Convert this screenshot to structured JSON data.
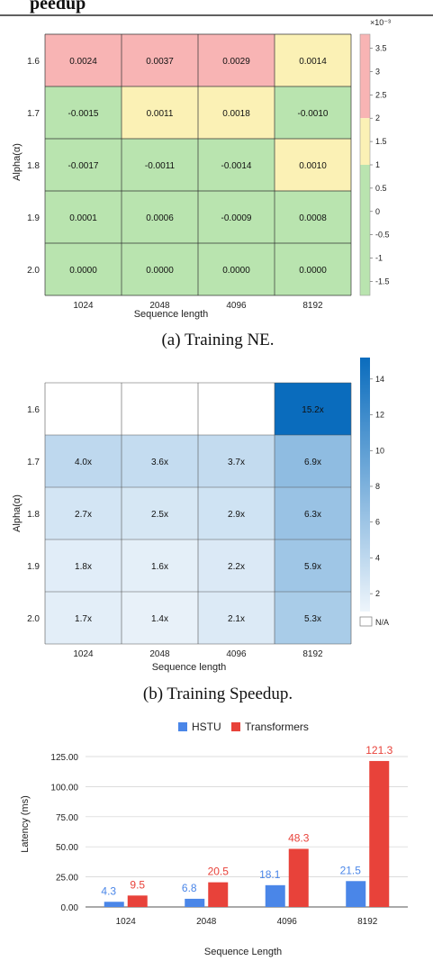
{
  "header": {
    "partial_title": "peedup"
  },
  "chart_data": [
    {
      "type": "heatmap",
      "caption": "(a) Training NE.",
      "xlabel": "Sequence length",
      "ylabel": "Alpha(α)",
      "x_categories": [
        "1024",
        "2048",
        "4096",
        "8192"
      ],
      "y_categories": [
        "1.6",
        "1.7",
        "1.8",
        "1.9",
        "2.0"
      ],
      "values": [
        [
          0.0024,
          0.0037,
          0.0029,
          0.0014
        ],
        [
          -0.0015,
          0.0011,
          0.0018,
          -0.001
        ],
        [
          -0.0017,
          -0.0011,
          -0.0014,
          0.001
        ],
        [
          0.0001,
          0.0006,
          -0.0009,
          0.0008
        ],
        [
          0.0,
          0.0,
          0.0,
          0.0
        ]
      ],
      "cell_labels": [
        [
          "0.0024",
          "0.0037",
          "0.0029",
          "0.0014"
        ],
        [
          "-0.0015",
          "0.0011",
          "0.0018",
          "-0.0010"
        ],
        [
          "-0.0017",
          "-0.0011",
          "-0.0014",
          "0.0010"
        ],
        [
          "0.0001",
          "0.0006",
          "-0.0009",
          "0.0008"
        ],
        [
          "0.0000",
          "0.0000",
          "0.0000",
          "0.0000"
        ]
      ],
      "colorbar": {
        "exponent_label": "×10⁻³",
        "range": [
          -1.8,
          3.8
        ],
        "ticks": [
          3.5,
          3,
          2.5,
          2,
          1.5,
          1,
          0.5,
          0,
          -0.5,
          -1,
          -1.5
        ],
        "tick_labels": [
          "3.5",
          "3",
          "2.5",
          "2",
          "1.5",
          "1",
          "0.5",
          "0",
          "-0.5",
          "-1",
          "-1.5"
        ],
        "bands": [
          {
            "from": 2,
            "to": 3.8,
            "color": "#f8b4b4"
          },
          {
            "from": 1,
            "to": 2,
            "color": "#fbf1b5"
          },
          {
            "from": -1.8,
            "to": 1,
            "color": "#b9e4af"
          }
        ]
      }
    },
    {
      "type": "heatmap",
      "caption": "(b) Training Speedup.",
      "xlabel": "Sequence length",
      "ylabel": "Alpha(α)",
      "x_categories": [
        "1024",
        "2048",
        "4096",
        "8192"
      ],
      "y_categories": [
        "1.6",
        "1.7",
        "1.8",
        "1.9",
        "2.0"
      ],
      "values": [
        [
          null,
          null,
          null,
          15.2
        ],
        [
          4.0,
          3.6,
          3.7,
          6.9
        ],
        [
          2.7,
          2.5,
          2.9,
          6.3
        ],
        [
          1.8,
          1.6,
          2.2,
          5.9
        ],
        [
          1.7,
          1.4,
          2.1,
          5.3
        ]
      ],
      "cell_labels": [
        [
          "",
          "",
          "",
          "15.2x"
        ],
        [
          "4.0x",
          "3.6x",
          "3.7x",
          "6.9x"
        ],
        [
          "2.7x",
          "2.5x",
          "2.9x",
          "6.3x"
        ],
        [
          "1.8x",
          "1.6x",
          "2.2x",
          "5.9x"
        ],
        [
          "1.7x",
          "1.4x",
          "2.1x",
          "5.3x"
        ]
      ],
      "colorbar": {
        "range": [
          1,
          15.2
        ],
        "ticks": [
          14,
          12,
          10,
          8,
          6,
          4,
          2
        ],
        "tick_labels": [
          "14",
          "12",
          "10",
          "8",
          "6",
          "4",
          "2"
        ],
        "low_color": "#eef5fb",
        "high_color": "#0a6cbd",
        "na_label": "N/A"
      }
    },
    {
      "type": "bar",
      "categories": [
        "1024",
        "2048",
        "4096",
        "8192"
      ],
      "series": [
        {
          "name": "HSTU",
          "values": [
            4.3,
            6.8,
            18.1,
            21.5
          ],
          "labels": [
            "4.3",
            "6.8",
            "18.1",
            "21.5"
          ],
          "color": "#4a86e8"
        },
        {
          "name": "Transformers",
          "values": [
            9.5,
            20.5,
            48.3,
            121.3
          ],
          "labels": [
            "9.5",
            "20.5",
            "48.3",
            "121.3"
          ],
          "color": "#e8423a"
        }
      ],
      "xlabel": "Sequence Length",
      "ylabel": "Latency (ms)",
      "ylim": [
        0,
        125
      ],
      "yticks": [
        0,
        25,
        50,
        75,
        100,
        125
      ],
      "ytick_labels": [
        "0.00",
        "25.00",
        "50.00",
        "75.00",
        "100.00",
        "125.00"
      ],
      "grid": true,
      "legend": "top-center"
    }
  ]
}
